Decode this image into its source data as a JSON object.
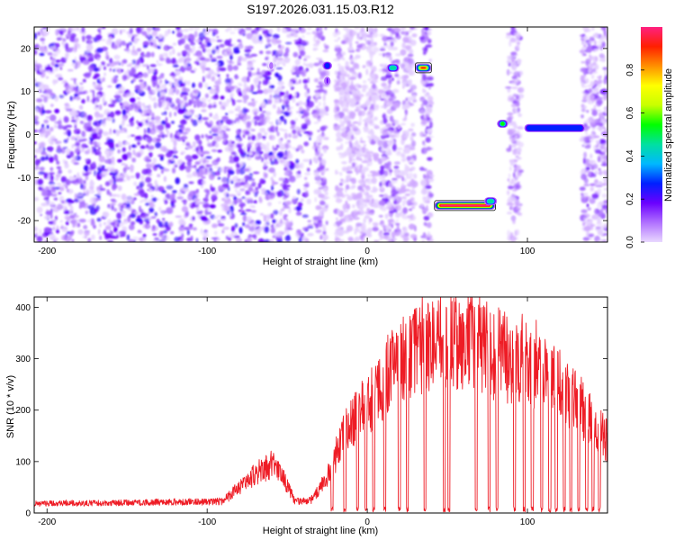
{
  "figure_title": "S197.2026.031.15.03.R12",
  "chart_data": [
    {
      "type": "heatmap",
      "title": "S197.2026.031.15.03.R12",
      "xlabel": "Height of straight line (km)",
      "ylabel": "Frequency (Hz)",
      "xlim": [
        -208,
        150
      ],
      "ylim": [
        -25,
        25
      ],
      "xticks": [
        -200,
        -100,
        0,
        100
      ],
      "xtick_labels": [
        "-200",
        "-100",
        "0",
        "100"
      ],
      "yticks": [
        -20,
        -10,
        0,
        10,
        20
      ],
      "ytick_labels": [
        "-20",
        "-10",
        "0",
        "10",
        "20"
      ],
      "colorbar": {
        "label": "Normalized spectral amplitude",
        "range": [
          0,
          1
        ],
        "ticks": [
          0,
          0.2,
          0.4,
          0.6,
          0.8
        ],
        "tick_labels": [
          "0.0",
          "0.2",
          "0.4",
          "0.6",
          "0.8"
        ],
        "colors": [
          "#e9d8ff",
          "#b070ff",
          "#6a00ff",
          "#0020ff",
          "#00b8ff",
          "#00e0a0",
          "#00ff00",
          "#c8ff00",
          "#ffff00",
          "#ff9000",
          "#ff2000",
          "#ff2080"
        ]
      },
      "background_noise_extent": [
        -208,
        -35
      ],
      "bands": [
        {
          "x0": -33,
          "x1": -25,
          "noise": 0.55
        },
        {
          "x0": -20,
          "x1": 6,
          "noise": 0.35
        },
        {
          "x0": 8,
          "x1": 20,
          "noise": 0.7
        },
        {
          "x0": 22,
          "x1": 30,
          "noise": 0.4
        },
        {
          "x0": 34,
          "x1": 40,
          "noise": 0.7
        },
        {
          "x0": 88,
          "x1": 96,
          "noise": 0.5
        },
        {
          "x0": 134,
          "x1": 150,
          "noise": 0.6
        }
      ],
      "features": [
        {
          "x0": -62,
          "x1": -58,
          "f": 16,
          "amp": 0.25
        },
        {
          "x0": -28,
          "x1": -22,
          "f": 16,
          "amp": 0.5
        },
        {
          "x0": -27,
          "x1": -23,
          "f": 12.5,
          "amp": 0.45
        },
        {
          "x0": 12,
          "x1": 20,
          "f": 15.5,
          "amp": 0.65
        },
        {
          "x0": 30,
          "x1": 40,
          "f": 15.5,
          "amp": 0.95
        },
        {
          "x0": 42,
          "x1": 80,
          "f": -16.5,
          "amp": 1.0
        },
        {
          "x0": 73,
          "x1": 81,
          "f": -15.5,
          "amp": 0.7
        },
        {
          "x0": 81,
          "x1": 88,
          "f": 2.5,
          "amp": 0.75
        },
        {
          "x0": 98,
          "x1": 136,
          "f": 1.5,
          "amp": 0.55
        }
      ]
    },
    {
      "type": "line",
      "xlabel": "Height of straight line (km)",
      "ylabel": "SNR (10 * v/v)",
      "xlim": [
        -208,
        150
      ],
      "ylim": [
        0,
        420
      ],
      "xticks": [
        -200,
        -100,
        0,
        100
      ],
      "xtick_labels": [
        "-200",
        "-100",
        "0",
        "100"
      ],
      "yticks": [
        0,
        100,
        200,
        300,
        400
      ],
      "ytick_labels": [
        "0",
        "100",
        "200",
        "300",
        "400"
      ],
      "color": "#ee1c25",
      "envelope": {
        "x": [
          -208,
          -90,
          -80,
          -70,
          -60,
          -52,
          -45,
          -35,
          -25,
          -15,
          -5,
          5,
          15,
          30,
          45,
          60,
          75,
          90,
          105,
          120,
          130,
          140,
          150
        ],
        "y": [
          18,
          22,
          50,
          75,
          95,
          65,
          22,
          25,
          70,
          150,
          195,
          235,
          275,
          310,
          330,
          340,
          320,
          295,
          280,
          250,
          220,
          175,
          140
        ]
      },
      "noise_amplitude": 0.3,
      "dropouts": [
        -22,
        -14,
        -6,
        -1,
        4,
        11,
        20,
        25,
        36,
        48,
        51,
        68,
        76,
        81,
        92,
        98,
        103,
        109,
        114,
        118,
        123,
        127,
        132,
        137,
        141,
        145
      ]
    }
  ]
}
